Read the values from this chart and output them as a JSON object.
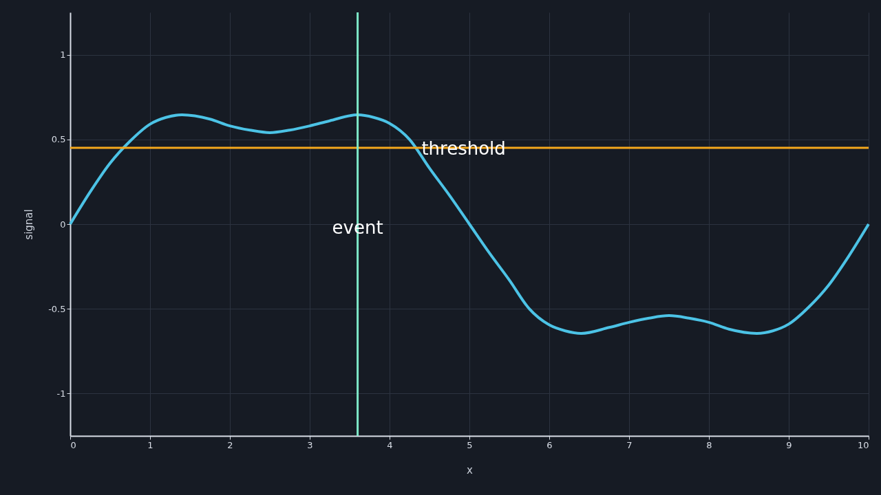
{
  "chart_data": {
    "type": "line",
    "xlabel": "x",
    "ylabel": "signal",
    "x": [
      0,
      0.25,
      0.5,
      0.75,
      1,
      1.2,
      1.4,
      1.75,
      2,
      2.25,
      2.5,
      2.75,
      3,
      3.25,
      3.6,
      3.8,
      4,
      4.25,
      4.5,
      4.75,
      5,
      5.25,
      5.5,
      5.75,
      6,
      6.2,
      6.4,
      6.75,
      7,
      7.25,
      7.5,
      7.75,
      8,
      8.25,
      8.6,
      8.8,
      9,
      9.25,
      9.5,
      9.75,
      10
    ],
    "series": [
      {
        "color": "#4cc3e6",
        "values": [
          0,
          0.19,
          0.36,
          0.49,
          0.59,
          0.63,
          0.645,
          0.62,
          0.58,
          0.555,
          0.54,
          0.555,
          0.58,
          0.61,
          0.645,
          0.63,
          0.595,
          0.5,
          0.33,
          0.17,
          0,
          -0.17,
          -0.33,
          -0.5,
          -0.595,
          -0.63,
          -0.645,
          -0.61,
          -0.58,
          -0.555,
          -0.54,
          -0.555,
          -0.58,
          -0.62,
          -0.645,
          -0.63,
          -0.59,
          -0.49,
          -0.36,
          -0.19,
          0
        ]
      }
    ],
    "xlim": [
      0,
      10
    ],
    "xticks": [
      0,
      1,
      2,
      3,
      4,
      5,
      6,
      7,
      8,
      9,
      10
    ],
    "ylim": [
      -1.25,
      1.25
    ],
    "yticks": [
      -1,
      -0.5,
      0,
      0.5,
      1
    ],
    "grid": true,
    "ref_lines": [
      {
        "axis": "y",
        "value": 0.45,
        "label": "threshold",
        "color": "#f5a81c"
      },
      {
        "axis": "x",
        "value": 3.6,
        "label": "event",
        "color": "#7ee8c8"
      }
    ]
  }
}
